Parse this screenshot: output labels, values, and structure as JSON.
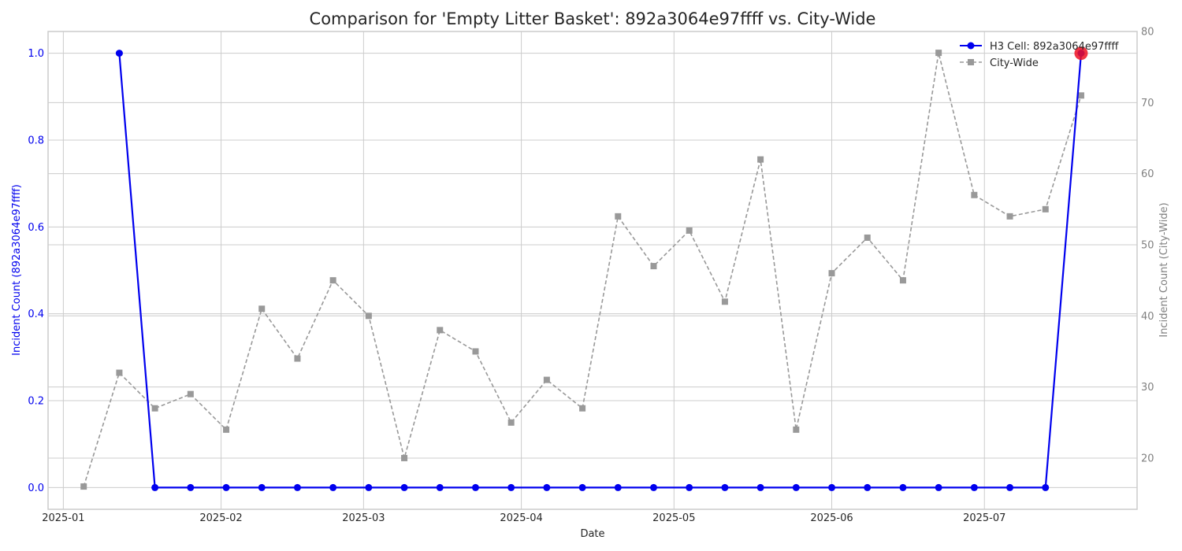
{
  "chart_data": {
    "type": "line",
    "title": "Comparison for 'Empty Litter Basket': 892a3064e97ffff vs. City-Wide",
    "xlabel": "Date",
    "ylabel_left": "Incident Count (892a3064e97ffff)",
    "ylabel_right": "Incident Count (City-Wide)",
    "ylim_left": [
      -0.05,
      1.05
    ],
    "ylim_right": [
      12.8,
      80
    ],
    "xlim": [
      "2024-12-29",
      "2025-07-31"
    ],
    "grid": true,
    "legend_position": "top-right",
    "x_ticks": [
      "2025-01",
      "2025-02",
      "2025-03",
      "2025-04",
      "2025-05",
      "2025-06",
      "2025-07"
    ],
    "x_tick_dates": [
      "2025-01-01",
      "2025-02-01",
      "2025-03-01",
      "2025-04-01",
      "2025-05-01",
      "2025-06-01",
      "2025-07-01"
    ],
    "y_ticks_left": [
      "0.0",
      "0.2",
      "0.4",
      "0.6",
      "0.8",
      "1.0"
    ],
    "y_ticks_right": [
      "20",
      "30",
      "40",
      "50",
      "60",
      "70",
      "80"
    ],
    "colors": {
      "h3": "#0000ee",
      "city": "#999999",
      "highlight": "#ee1122"
    },
    "series": [
      {
        "name": "H3 Cell: 892a3064e97ffff",
        "axis": "left",
        "style": "solid",
        "marker": "circle",
        "x": [
          "2025-01-12",
          "2025-01-19",
          "2025-01-26",
          "2025-02-02",
          "2025-02-09",
          "2025-02-16",
          "2025-02-23",
          "2025-03-02",
          "2025-03-09",
          "2025-03-16",
          "2025-03-23",
          "2025-03-30",
          "2025-04-06",
          "2025-04-13",
          "2025-04-20",
          "2025-04-27",
          "2025-05-04",
          "2025-05-11",
          "2025-05-18",
          "2025-05-25",
          "2025-06-01",
          "2025-06-08",
          "2025-06-15",
          "2025-06-22",
          "2025-06-29",
          "2025-07-06",
          "2025-07-13",
          "2025-07-20"
        ],
        "values": [
          1,
          0,
          0,
          0,
          0,
          0,
          0,
          0,
          0,
          0,
          0,
          0,
          0,
          0,
          0,
          0,
          0,
          0,
          0,
          0,
          0,
          0,
          0,
          0,
          0,
          0,
          0,
          1
        ]
      },
      {
        "name": "City-Wide",
        "axis": "right",
        "style": "dashed",
        "marker": "square",
        "x": [
          "2025-01-05",
          "2025-01-12",
          "2025-01-19",
          "2025-01-26",
          "2025-02-02",
          "2025-02-09",
          "2025-02-16",
          "2025-02-23",
          "2025-03-02",
          "2025-03-09",
          "2025-03-16",
          "2025-03-23",
          "2025-03-30",
          "2025-04-06",
          "2025-04-13",
          "2025-04-20",
          "2025-04-27",
          "2025-05-04",
          "2025-05-11",
          "2025-05-18",
          "2025-05-25",
          "2025-06-01",
          "2025-06-08",
          "2025-06-15",
          "2025-06-22",
          "2025-06-29",
          "2025-07-06",
          "2025-07-13",
          "2025-07-20"
        ],
        "values": [
          16,
          32,
          27,
          29,
          24,
          41,
          34,
          45,
          40,
          20,
          38,
          35,
          25,
          31,
          27,
          54,
          47,
          52,
          42,
          62,
          24,
          46,
          51,
          45,
          77,
          57,
          54,
          55,
          71
        ]
      }
    ],
    "highlight_point": {
      "series": "H3 Cell: 892a3064e97ffff",
      "x": "2025-07-20",
      "y": 1
    }
  }
}
